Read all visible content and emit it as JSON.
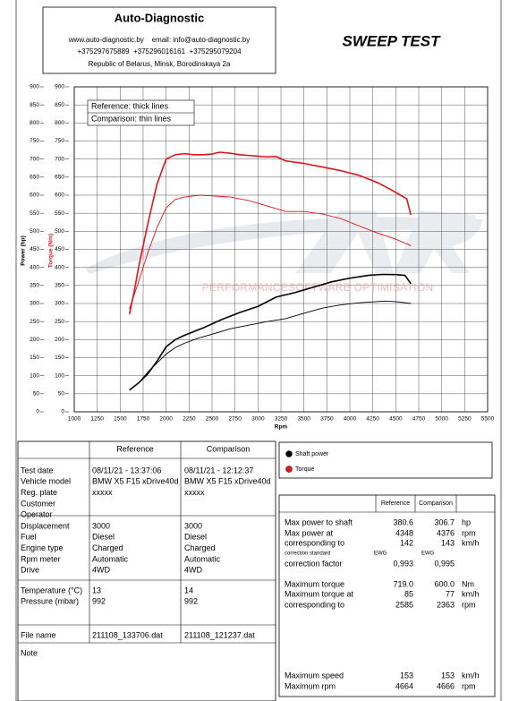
{
  "header": {
    "company": "Auto-Diagnostic",
    "contacts": "www.auto-diagnostic.by    email: info@auto-diagnostic.by",
    "phones": "+375297675889  +375296016161  +375295079204",
    "address": "Republic of Belarus, Minsk, Borodinskaya 2a",
    "report_title": "SWEEP TEST"
  },
  "chart_data": {
    "type": "line",
    "xlabel": "Rpm",
    "ylabel": "Power (hp)",
    "y2label": "Torque (Nm)",
    "xlim": [
      1000,
      5500
    ],
    "xticks": [
      1000,
      1250,
      1500,
      1750,
      2000,
      2250,
      2500,
      2750,
      3000,
      3250,
      3500,
      3750,
      4000,
      4250,
      4500,
      4750,
      5000,
      5250,
      5500
    ],
    "ylim": [
      0,
      900
    ],
    "yticks": [
      0,
      50,
      100,
      150,
      200,
      250,
      300,
      350,
      400,
      450,
      500,
      550,
      600,
      650,
      700,
      750,
      800,
      850,
      900
    ],
    "y2lim": [
      0,
      900
    ],
    "y2ticks": [
      0,
      50,
      100,
      150,
      200,
      250,
      300,
      350,
      400,
      450,
      500,
      550,
      600,
      650,
      700,
      750,
      800,
      850,
      900
    ],
    "grid": true,
    "annotations": [
      "Reference: thick lines",
      "Comparison: thin lines"
    ],
    "watermark": "PERFORMANCESOFTWARE OPTIMISATION",
    "series": [
      {
        "color": "#e3141b",
        "line_width": 1.6,
        "axis": "y2",
        "x": [
          1600,
          1650,
          1700,
          1800,
          1900,
          2000,
          2100,
          2200,
          2300,
          2400,
          2500,
          2585,
          2700,
          2800,
          2900,
          3000,
          3100,
          3200,
          3300,
          3500,
          3700,
          3900,
          4100,
          4300,
          4450,
          4550,
          4620,
          4664
        ],
        "values": [
          270,
          330,
          400,
          520,
          630,
          700,
          712,
          715,
          712,
          712,
          714,
          719,
          716,
          712,
          710,
          708,
          706,
          707,
          695,
          688,
          678,
          668,
          655,
          635,
          615,
          600,
          590,
          545
        ]
      },
      {
        "color": "#e3141b",
        "line_width": 0.9,
        "axis": "y2",
        "x": [
          1600,
          1700,
          1800,
          1900,
          2000,
          2100,
          2200,
          2363,
          2500,
          2700,
          2900,
          3100,
          3300,
          3500,
          3700,
          3900,
          4100,
          4300,
          4500,
          4666
        ],
        "values": [
          285,
          360,
          440,
          510,
          565,
          588,
          595,
          600,
          598,
          595,
          585,
          570,
          555,
          555,
          548,
          535,
          515,
          495,
          478,
          460
        ]
      },
      {
        "color": "#000000",
        "line_width": 1.6,
        "x": [
          1600,
          1700,
          1800,
          1900,
          2000,
          2100,
          2200,
          2400,
          2600,
          2800,
          3000,
          3200,
          3400,
          3600,
          3800,
          4000,
          4200,
          4348,
          4500,
          4600,
          4664
        ],
        "values": [
          60,
          80,
          105,
          140,
          180,
          200,
          212,
          232,
          255,
          275,
          292,
          318,
          330,
          345,
          360,
          370,
          378,
          380.6,
          380,
          378,
          355
        ]
      },
      {
        "color": "#000000",
        "line_width": 0.9,
        "x": [
          1600,
          1700,
          1800,
          1900,
          2000,
          2100,
          2200,
          2363,
          2500,
          2700,
          2900,
          3100,
          3300,
          3500,
          3700,
          3900,
          4100,
          4376,
          4500,
          4666
        ],
        "values": [
          60,
          80,
          110,
          135,
          160,
          178,
          190,
          205,
          215,
          230,
          240,
          250,
          258,
          273,
          287,
          296,
          302,
          306.7,
          305,
          300
        ]
      }
    ]
  },
  "legend": {
    "items": [
      {
        "label": "Shaft power",
        "color": "#000000"
      },
      {
        "label": "Torque",
        "color": "#e3141b"
      }
    ]
  },
  "vehicle_table": {
    "columns": [
      "Reference",
      "Comparison"
    ],
    "groups": [
      [
        {
          "label": "Test date",
          "reference": "08/11/21 - 13:37:06",
          "comparison": "08/11/21 - 12:12:37"
        },
        {
          "label": "Vehicle model",
          "reference": "BMW X5 F15 xDrive40d",
          "comparison": "BMW X5 F15 xDrive40d"
        },
        {
          "label": "Reg. plate",
          "reference": "xxxxx",
          "comparison": "xxxxx"
        },
        {
          "label": "Customer"
        },
        {
          "label": "Operator"
        }
      ],
      [
        {
          "label": "Displacement",
          "reference": "3000",
          "comparison": "3000"
        },
        {
          "label": "Fuel",
          "reference": "Diesel",
          "comparison": "Diesel"
        },
        {
          "label": "Engine type",
          "reference": "Charged",
          "comparison": "Charged"
        },
        {
          "label": "Rpm meter",
          "reference": "Automatic",
          "comparison": "Automatic"
        },
        {
          "label": "Drive",
          "reference": "4WD",
          "comparison": "4WD"
        }
      ],
      [
        {
          "label": "Temperature (°C)",
          "reference": "13",
          "comparison": "14"
        },
        {
          "label": "Pressure (mbar)",
          "reference": "992",
          "comparison": "992"
        }
      ],
      [
        {
          "label": "File name",
          "reference": "211108_133706.dat",
          "comparison": "211108_121237.dat"
        }
      ],
      [
        {
          "label": "Note"
        }
      ]
    ]
  },
  "results_table": {
    "columns": [
      "Reference",
      "Comparison"
    ],
    "rows": [
      {
        "label": "Max power to shaft",
        "reference": "380.6",
        "comparison": "306.7",
        "unit": "hp"
      },
      {
        "label": "Max power at",
        "reference": "4348",
        "comparison": "4376",
        "unit": "rpm"
      },
      {
        "label": "corresponding to",
        "reference": "142",
        "comparison": "143",
        "unit": "km/h"
      },
      {
        "label": "correction standard",
        "reference": "EWG",
        "comparison": "EWG"
      },
      {
        "label": "correction factor",
        "reference": "0,993",
        "comparison": "0,995"
      },
      {
        "label": "Maximum torque",
        "reference": "719.0",
        "comparison": "600.0",
        "unit": "Nm"
      },
      {
        "label": "Maximum torque at",
        "reference": "85",
        "comparison": "77",
        "unit": "km/h"
      },
      {
        "label": "corresponding to",
        "reference": "2585",
        "comparison": "2363",
        "unit": "rpm"
      },
      {
        "label": "Maximum speed",
        "reference": "153",
        "comparison": "153",
        "unit": "km/h"
      },
      {
        "label": "Maximum rpm",
        "reference": "4664",
        "comparison": "4666",
        "unit": "rpm"
      }
    ]
  }
}
